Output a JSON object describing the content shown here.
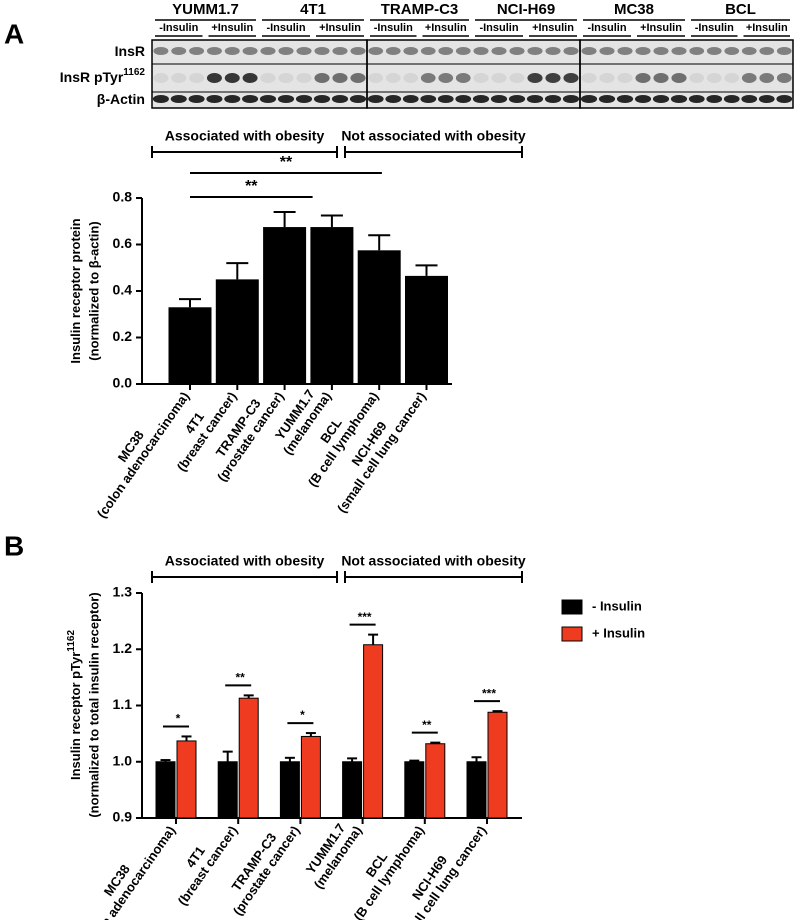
{
  "blot": {
    "panel_label": "A",
    "cell_lines": [
      "YUMM1.7",
      "4T1",
      "TRAMP-C3",
      "NCI-H69",
      "MC38",
      "BCL"
    ],
    "conditions": [
      "-Insulin",
      "+Insulin"
    ],
    "rows": [
      {
        "text": "InsR"
      },
      {
        "text": "InsR pTyr",
        "sup": "1162"
      },
      {
        "text": "β-Actin"
      }
    ]
  },
  "chart_data": [
    {
      "type": "bar",
      "panel_label": "A",
      "y_label": "Insulin receptor protein",
      "y_label_sub": "(normalized to β-actin)",
      "categories": [
        "MC38",
        "4T1",
        "TRAMP-C3",
        "YUMM1.7",
        "BCL",
        "NCI-H69"
      ],
      "category_notes": [
        "(colon adenocarcinoma)",
        "(breast cancer)",
        "(prostate cancer)",
        "(melanoma)",
        "(B cell lymphoma)",
        "(small cell lung cancer)"
      ],
      "values": [
        0.33,
        0.45,
        0.675,
        0.675,
        0.575,
        0.465
      ],
      "errors": [
        0.035,
        0.07,
        0.065,
        0.05,
        0.065,
        0.045
      ],
      "color": "#000000",
      "ylim": [
        0,
        0.8
      ],
      "yticks": [
        {
          "value": 0,
          "label": "0.0"
        },
        0.2,
        0.4,
        0.6,
        0.8
      ],
      "groups": [
        "Associated with obesity",
        "Not associated with obesity"
      ],
      "significance": [
        "**",
        "**"
      ]
    },
    {
      "type": "grouped_bar",
      "panel_label": "B",
      "y_label": "Insulin receptor pTyr",
      "y_label_sup": "1162",
      "y_label_sub": "(normalized to total insulin receptor)",
      "categories": [
        "MC38",
        "4T1",
        "TRAMP-C3",
        "YUMM1.7",
        "BCL",
        "NCI-H69"
      ],
      "category_notes": [
        "(colon adenocarcinoma)",
        "(breast cancer)",
        "(prostate cancer)",
        "(melanoma)",
        "(B cell lymphoma)",
        "(small cell lung cancer)"
      ],
      "series": [
        {
          "name": "- Insulin",
          "color": "#000000",
          "values": [
            1.0,
            1.0,
            1.0,
            1.0,
            1.0,
            1.0
          ],
          "errors": [
            0.003,
            0.018,
            0.007,
            0.006,
            0.002,
            0.008
          ]
        },
        {
          "name": "+ Insulin",
          "color": "#ef3b1f",
          "values": [
            1.037,
            1.113,
            1.045,
            1.208,
            1.032,
            1.088
          ],
          "errors": [
            0.008,
            0.005,
            0.006,
            0.018,
            0.002,
            0.002
          ]
        }
      ],
      "ylim": [
        0.9,
        1.3
      ],
      "yticks": [
        0.9,
        {
          "value": 1,
          "label": "1.0"
        },
        1.1,
        1.2,
        1.3
      ],
      "legend": "right",
      "groups": [
        "Associated with obesity",
        "Not associated with obesity"
      ],
      "significance": [
        "*",
        "**",
        "*",
        "***",
        "**",
        "***"
      ]
    }
  ]
}
